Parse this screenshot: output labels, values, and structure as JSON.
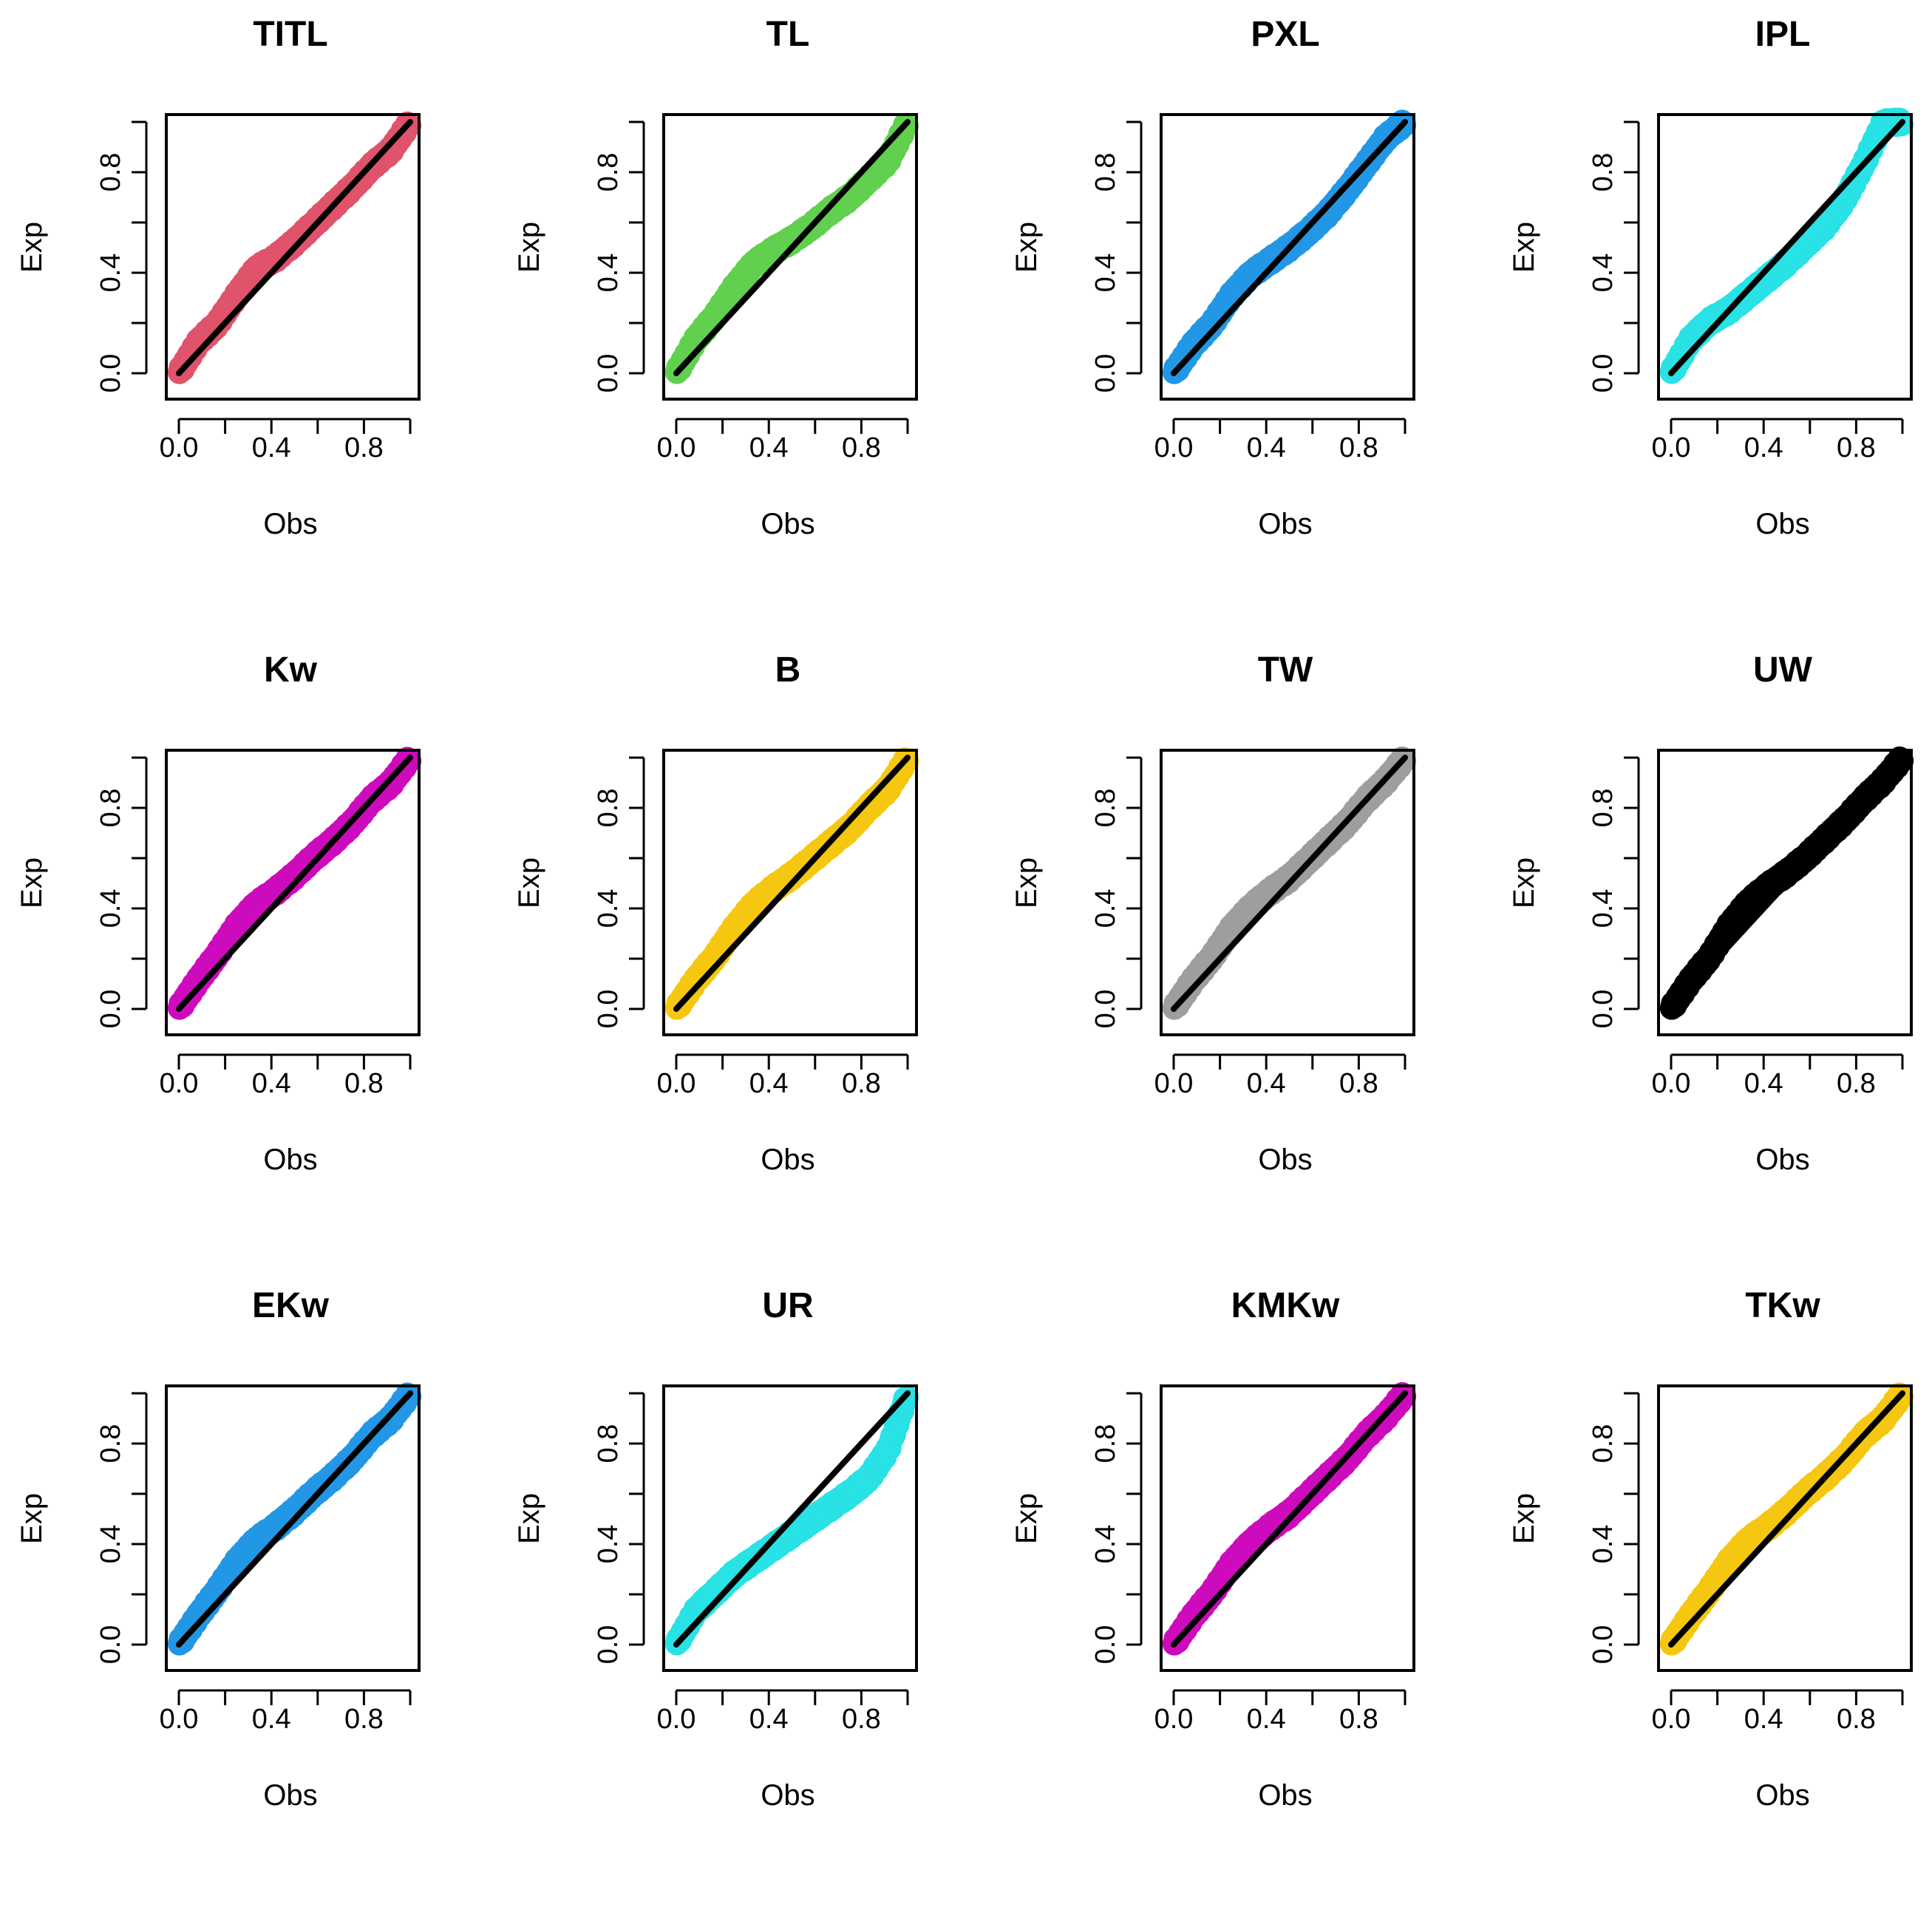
{
  "chart_data": [
    {
      "type": "scatter",
      "title": "TITL",
      "xlabel": "Obs",
      "ylabel": "Exp",
      "color": "#DF536B",
      "xlim": [
        0,
        1
      ],
      "ylim": [
        0,
        1
      ],
      "ticks": [
        "0.0",
        "0.4",
        "0.8"
      ],
      "deviation": [
        0,
        0.04,
        0.03,
        0.06,
        0.08,
        0.04,
        0.02,
        0.01,
        0.0,
        -0.01,
        -0.01,
        -0.03,
        0
      ]
    },
    {
      "type": "scatter",
      "title": "TL",
      "xlabel": "Obs",
      "ylabel": "Exp",
      "color": "#61D04F",
      "xlim": [
        0,
        1
      ],
      "ylim": [
        0,
        1
      ],
      "ticks": [
        "0.0",
        "0.4",
        "0.8"
      ],
      "deviation": [
        0,
        0.05,
        0.06,
        0.09,
        0.1,
        0.07,
        0.03,
        0.0,
        -0.02,
        -0.05,
        -0.06,
        -0.07,
        0
      ]
    },
    {
      "type": "scatter",
      "title": "PXL",
      "xlabel": "Obs",
      "ylabel": "Exp",
      "color": "#2297E6",
      "xlim": [
        0,
        1
      ],
      "ylim": [
        0,
        1
      ],
      "ticks": [
        "0.0",
        "0.4",
        "0.8"
      ],
      "deviation": [
        0,
        0.03,
        0.03,
        0.06,
        0.06,
        0.03,
        0.0,
        -0.02,
        -0.03,
        -0.02,
        0.0,
        0.02,
        0
      ]
    },
    {
      "type": "scatter",
      "title": "IPL",
      "xlabel": "Obs",
      "ylabel": "Exp",
      "color": "#28E2E5",
      "xlim": [
        0,
        1
      ],
      "ylim": [
        0,
        1
      ],
      "ticks": [
        "0.0",
        "0.4",
        "0.8"
      ],
      "deviation": [
        0,
        0.05,
        0.04,
        0.0,
        -0.02,
        -0.04,
        -0.06,
        -0.07,
        -0.08,
        -0.06,
        0.0,
        0.08,
        0
      ]
    },
    {
      "type": "scatter",
      "title": "Kw",
      "xlabel": "Obs",
      "ylabel": "Exp",
      "color": "#CD0BBC",
      "xlim": [
        0,
        1
      ],
      "ylim": [
        0,
        1
      ],
      "ticks": [
        "0.0",
        "0.4",
        "0.8"
      ],
      "deviation": [
        0,
        0.03,
        0.05,
        0.08,
        0.08,
        0.05,
        0.03,
        0.02,
        0.0,
        -0.01,
        0.0,
        -0.02,
        0
      ]
    },
    {
      "type": "scatter",
      "title": "B",
      "xlabel": "Obs",
      "ylabel": "Exp",
      "color": "#F5C710",
      "xlim": [
        0,
        1
      ],
      "ylim": [
        0,
        1
      ],
      "ticks": [
        "0.0",
        "0.4",
        "0.8"
      ],
      "deviation": [
        0,
        0.03,
        0.04,
        0.07,
        0.08,
        0.06,
        0.03,
        0.01,
        -0.01,
        -0.03,
        -0.03,
        -0.04,
        0
      ]
    },
    {
      "type": "scatter",
      "title": "TW",
      "xlabel": "Obs",
      "ylabel": "Exp",
      "color": "#9E9E9E",
      "xlim": [
        0,
        1
      ],
      "ylim": [
        0,
        1
      ],
      "ticks": [
        "0.0",
        "0.4",
        "0.8"
      ],
      "deviation": [
        0,
        0.03,
        0.04,
        0.07,
        0.07,
        0.05,
        0.02,
        0.01,
        0.0,
        -0.01,
        0.0,
        -0.01,
        0
      ]
    },
    {
      "type": "scatter",
      "title": "UW",
      "xlabel": "Obs",
      "ylabel": "Exp",
      "color": "#000000",
      "xlim": [
        0,
        1
      ],
      "ylim": [
        0,
        1
      ],
      "ticks": [
        "0.0",
        "0.4",
        "0.8"
      ],
      "deviation": [
        0,
        0.03,
        0.04,
        0.08,
        0.09,
        0.07,
        0.04,
        0.02,
        0.01,
        0.0,
        0.0,
        -0.01,
        0
      ]
    },
    {
      "type": "scatter",
      "title": "EKw",
      "xlabel": "Obs",
      "ylabel": "Exp",
      "color": "#2297E6",
      "xlim": [
        0,
        1
      ],
      "ylim": [
        0,
        1
      ],
      "ticks": [
        "0.0",
        "0.4",
        "0.8"
      ],
      "deviation": [
        0,
        0.03,
        0.05,
        0.08,
        0.08,
        0.05,
        0.03,
        0.02,
        0.0,
        -0.01,
        0.0,
        -0.02,
        0
      ]
    },
    {
      "type": "scatter",
      "title": "UR",
      "xlabel": "Obs",
      "ylabel": "Exp",
      "color": "#28E2E5",
      "xlim": [
        0,
        1
      ],
      "ylim": [
        0,
        1
      ],
      "ticks": [
        "0.0",
        "0.4",
        "0.8"
      ],
      "deviation": [
        0,
        0.05,
        0.04,
        0.03,
        0.0,
        -0.03,
        -0.06,
        -0.09,
        -0.12,
        -0.15,
        -0.17,
        -0.14,
        0
      ]
    },
    {
      "type": "scatter",
      "title": "KMKw",
      "xlabel": "Obs",
      "ylabel": "Exp",
      "color": "#CD0BBC",
      "xlim": [
        0,
        1
      ],
      "ylim": [
        0,
        1
      ],
      "ticks": [
        "0.0",
        "0.4",
        "0.8"
      ],
      "deviation": [
        0,
        0.03,
        0.04,
        0.07,
        0.07,
        0.05,
        0.02,
        0.01,
        0.0,
        -0.01,
        0.0,
        -0.01,
        0
      ]
    },
    {
      "type": "scatter",
      "title": "TKw",
      "xlabel": "Obs",
      "ylabel": "Exp",
      "color": "#F5C710",
      "xlim": [
        0,
        1
      ],
      "ylim": [
        0,
        1
      ],
      "ticks": [
        "0.0",
        "0.4",
        "0.8"
      ],
      "deviation": [
        0,
        0.03,
        0.05,
        0.08,
        0.08,
        0.05,
        0.03,
        0.02,
        0.0,
        -0.01,
        0.0,
        -0.02,
        0
      ]
    }
  ]
}
